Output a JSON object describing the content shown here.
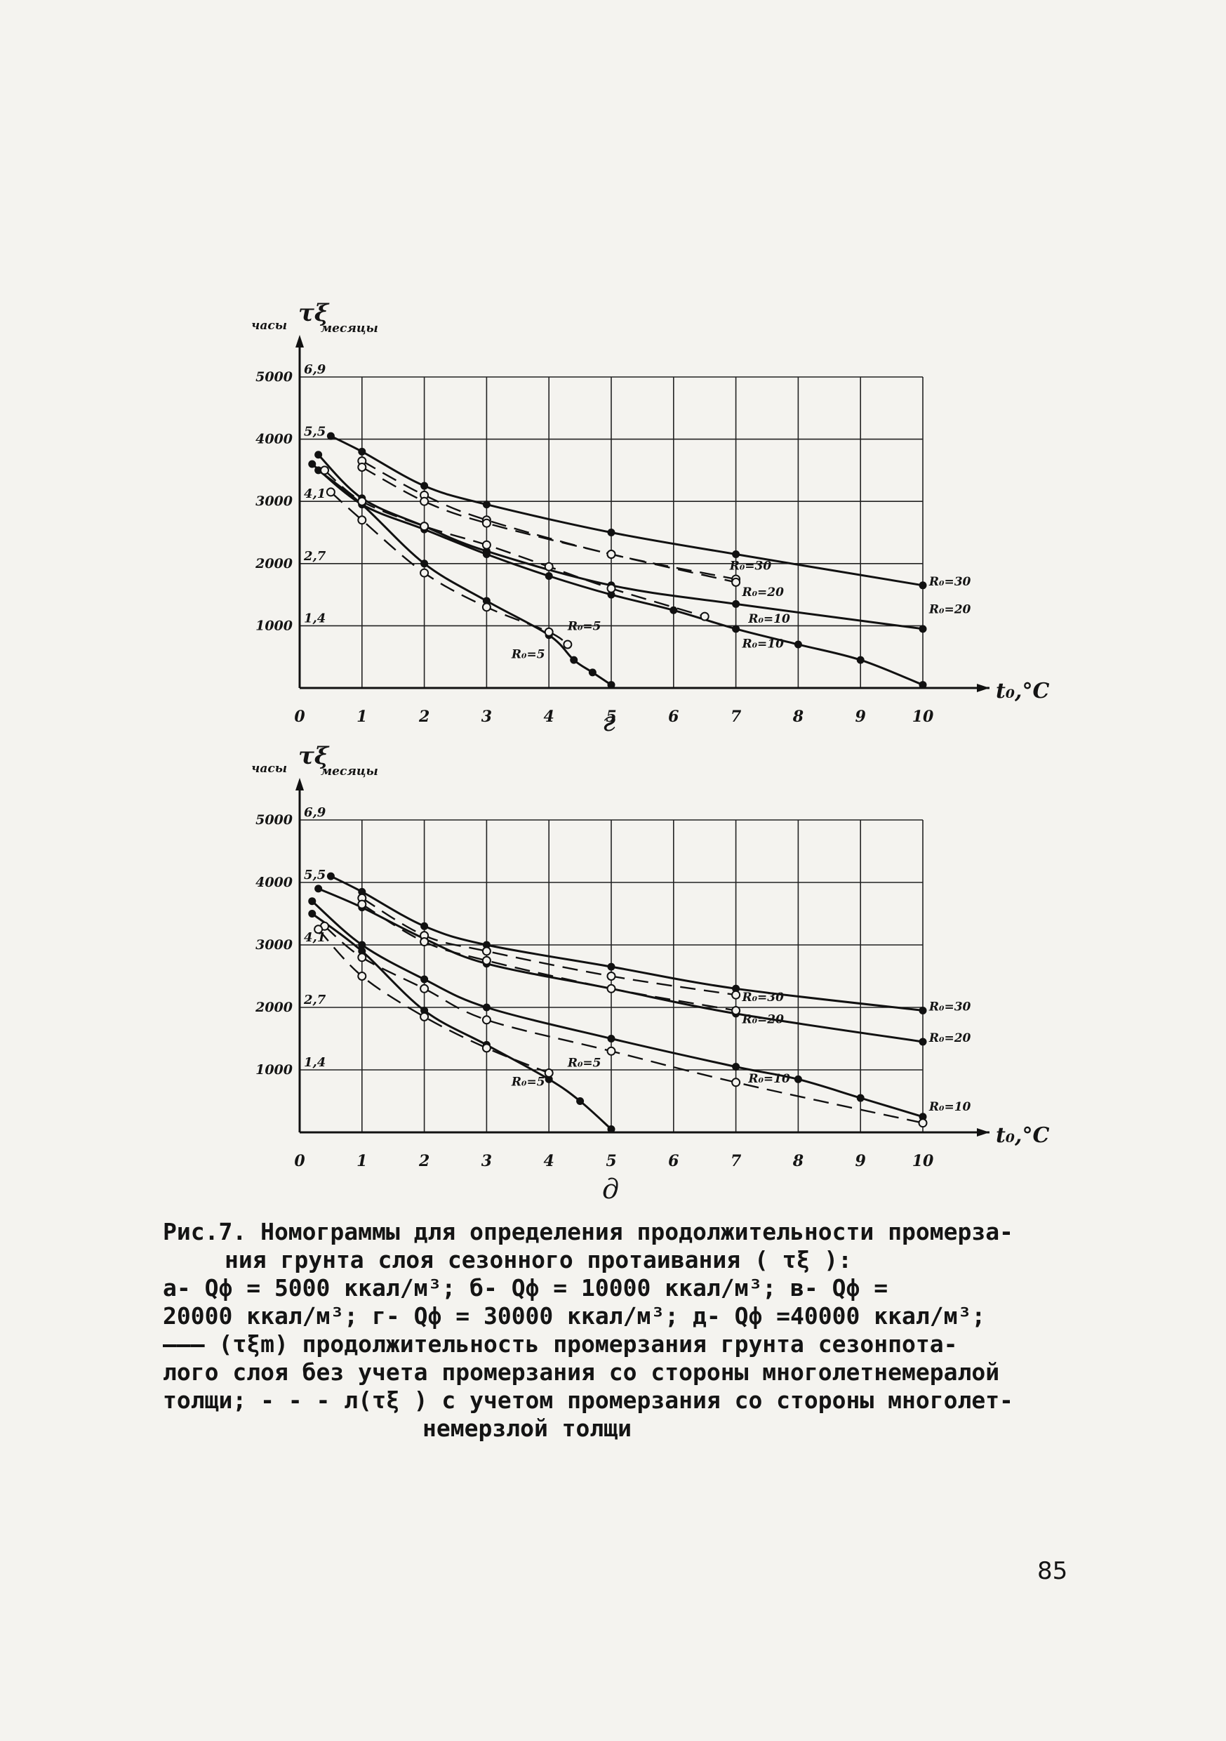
{
  "chart_data": [
    {
      "id": "g",
      "type": "line",
      "panel_letter": "г",
      "y_label_left": "часы",
      "y_symbol": "τξ",
      "y_label_right": "месяцы",
      "x_label": "t₀,°C",
      "xlim": [
        0,
        10
      ],
      "ylim": [
        0,
        5000
      ],
      "x_ticks": [
        "0",
        "1",
        "2",
        "3",
        "4",
        "5",
        "6",
        "7",
        "8",
        "9",
        "10"
      ],
      "y_ticks_hours": [
        {
          "v": 1000,
          "label": "1000"
        },
        {
          "v": 2000,
          "label": "2000"
        },
        {
          "v": 3000,
          "label": "3000"
        },
        {
          "v": 4000,
          "label": "4000"
        },
        {
          "v": 5000,
          "label": "5000"
        }
      ],
      "y_ticks_months": [
        {
          "v": 1000,
          "label": "1,4"
        },
        {
          "v": 2000,
          "label": "2,7"
        },
        {
          "v": 3000,
          "label": "4,1"
        },
        {
          "v": 4000,
          "label": "5,5"
        },
        {
          "v": 5000,
          "label": "6,9"
        }
      ],
      "grid": true,
      "series": [
        {
          "name": "R₀=30",
          "style": "solid",
          "marker": "dot",
          "x": [
            0.5,
            1,
            2,
            3,
            5,
            7,
            10
          ],
          "y": [
            4050,
            3800,
            3250,
            2950,
            2500,
            2150,
            1650
          ]
        },
        {
          "name": "R₀=20",
          "style": "solid",
          "marker": "dot",
          "x": [
            0.3,
            1,
            2,
            3,
            5,
            7,
            10
          ],
          "y": [
            3750,
            3050,
            2600,
            2200,
            1650,
            1350,
            950
          ]
        },
        {
          "name": "R₀=10",
          "style": "solid",
          "marker": "dot",
          "x": [
            0.2,
            1,
            2,
            3,
            4,
            5,
            6,
            7,
            8,
            9,
            10
          ],
          "y": [
            3600,
            2950,
            2550,
            2150,
            1800,
            1500,
            1250,
            950,
            700,
            450,
            50
          ]
        },
        {
          "name": "R₀=5",
          "style": "solid",
          "marker": "dot",
          "x": [
            0.3,
            1,
            2,
            3,
            4,
            4.4,
            4.7,
            5
          ],
          "y": [
            3500,
            2950,
            2000,
            1400,
            850,
            450,
            250,
            50
          ]
        },
        {
          "name": "R₀=30",
          "style": "dashed",
          "marker": "circle",
          "x": [
            1,
            2,
            3,
            5,
            7
          ],
          "y": [
            3650,
            3100,
            2700,
            2150,
            1750
          ]
        },
        {
          "name": "R₀=20",
          "style": "dashed",
          "marker": "circle",
          "x": [
            1,
            2,
            3,
            5,
            7
          ],
          "y": [
            3550,
            3000,
            2650,
            2150,
            1700
          ]
        },
        {
          "name": "R₀=10",
          "style": "dashed",
          "marker": "circle",
          "x": [
            0.4,
            1,
            2,
            3,
            4,
            5,
            6.5
          ],
          "y": [
            3500,
            3000,
            2600,
            2300,
            1950,
            1600,
            1150
          ]
        },
        {
          "name": "R₀=5",
          "style": "dashed",
          "marker": "circle",
          "x": [
            0.5,
            1,
            2,
            3,
            4,
            4.3
          ],
          "y": [
            3150,
            2700,
            1850,
            1300,
            900,
            700
          ]
        }
      ],
      "curve_labels": [
        {
          "text": "R₀=30",
          "x": 6.9,
          "y": 1900
        },
        {
          "text": "R₀=20",
          "x": 7.1,
          "y": 1480
        },
        {
          "text": "R₀=10",
          "x": 7.2,
          "y": 1050
        },
        {
          "text": "R₀=10",
          "x": 7.1,
          "y": 650
        },
        {
          "text": "R₀=5",
          "x": 3.4,
          "y": 480
        },
        {
          "text": "R₀=5",
          "x": 4.3,
          "y": 930
        },
        {
          "text": "R₀=30",
          "x": 10.1,
          "y": 1650
        },
        {
          "text": "R₀=20",
          "x": 10.1,
          "y": 1200
        }
      ]
    },
    {
      "id": "d",
      "type": "line",
      "panel_letter": "д",
      "y_label_left": "часы",
      "y_symbol": "τξ",
      "y_label_right": "месяцы",
      "x_label": "t₀,°C",
      "xlim": [
        0,
        10
      ],
      "ylim": [
        0,
        5000
      ],
      "x_ticks": [
        "0",
        "1",
        "2",
        "3",
        "4",
        "5",
        "6",
        "7",
        "8",
        "9",
        "10"
      ],
      "y_ticks_hours": [
        {
          "v": 1000,
          "label": "1000"
        },
        {
          "v": 2000,
          "label": "2000"
        },
        {
          "v": 3000,
          "label": "3000"
        },
        {
          "v": 4000,
          "label": "4000"
        },
        {
          "v": 5000,
          "label": "5000"
        }
      ],
      "y_ticks_months": [
        {
          "v": 1000,
          "label": "1,4"
        },
        {
          "v": 2000,
          "label": "2,7"
        },
        {
          "v": 3000,
          "label": "4,1"
        },
        {
          "v": 4000,
          "label": "5,5"
        },
        {
          "v": 5000,
          "label": "6,9"
        }
      ],
      "grid": true,
      "series": [
        {
          "name": "R₀=30",
          "style": "solid",
          "marker": "dot",
          "x": [
            0.5,
            1,
            2,
            3,
            5,
            7,
            10
          ],
          "y": [
            4100,
            3850,
            3300,
            3000,
            2650,
            2300,
            1950
          ]
        },
        {
          "name": "R₀=20",
          "style": "solid",
          "marker": "dot",
          "x": [
            0.3,
            1,
            2,
            3,
            5,
            7,
            10
          ],
          "y": [
            3900,
            3600,
            3100,
            2700,
            2300,
            1900,
            1450
          ]
        },
        {
          "name": "R₀=10",
          "style": "solid",
          "marker": "dot",
          "x": [
            0.2,
            1,
            2,
            3,
            5,
            7,
            8,
            9,
            10
          ],
          "y": [
            3700,
            3000,
            2450,
            2000,
            1500,
            1050,
            850,
            550,
            250
          ]
        },
        {
          "name": "R₀=5",
          "style": "solid",
          "marker": "dot",
          "x": [
            0.2,
            1,
            2,
            3,
            4,
            4.5,
            5
          ],
          "y": [
            3500,
            2900,
            1950,
            1400,
            850,
            500,
            50
          ]
        },
        {
          "name": "R₀=30",
          "style": "dashed",
          "marker": "circle",
          "x": [
            1,
            2,
            3,
            5,
            7
          ],
          "y": [
            3750,
            3150,
            2900,
            2500,
            2200
          ]
        },
        {
          "name": "R₀=20",
          "style": "dashed",
          "marker": "circle",
          "x": [
            1,
            2,
            3,
            5,
            7
          ],
          "y": [
            3650,
            3050,
            2750,
            2300,
            1950
          ]
        },
        {
          "name": "R₀=10",
          "style": "dashed",
          "marker": "circle",
          "x": [
            0.4,
            1,
            2,
            3,
            5,
            7,
            10
          ],
          "y": [
            3300,
            2800,
            2300,
            1800,
            1300,
            800,
            150
          ]
        },
        {
          "name": "R₀=5",
          "style": "dashed",
          "marker": "circle",
          "x": [
            0.3,
            1,
            2,
            3,
            4
          ],
          "y": [
            3250,
            2500,
            1850,
            1350,
            950
          ]
        }
      ],
      "curve_labels": [
        {
          "text": "R₀=30",
          "x": 7.1,
          "y": 2100
        },
        {
          "text": "R₀=20",
          "x": 7.1,
          "y": 1750
        },
        {
          "text": "R₀=10",
          "x": 7.2,
          "y": 800
        },
        {
          "text": "R₀=10",
          "x": 10.1,
          "y": 350
        },
        {
          "text": "R₀=5",
          "x": 3.4,
          "y": 750
        },
        {
          "text": "R₀=5",
          "x": 4.3,
          "y": 1050
        },
        {
          "text": "R₀=30",
          "x": 10.1,
          "y": 1950
        },
        {
          "text": "R₀=20",
          "x": 10.1,
          "y": 1450
        }
      ]
    }
  ],
  "caption": {
    "line1": "Рис.7. Номограммы для определения продолжительности промерза-",
    "line2": "ния грунта слоя сезонного протаивания ( τξ ):",
    "line3": "а- Qф = 5000 ккал/м³; б- Qф = 10000 ккал/м³; в- Qф =",
    "line4": "20000 ккал/м³; г- Qф = 30000 ккал/м³; д- Qф =40000 ккал/м³;",
    "line5": "——— (τξm) продолжительность промерзания грунта сезонпота-",
    "line6": "лого слоя без учета промерзания со стороны многолетнемералой",
    "line7": "толщи; - - - л(τξ ) с учетом промерзания со стороны многолет-",
    "line8": "немерзлой толщи"
  },
  "page_number": "85"
}
